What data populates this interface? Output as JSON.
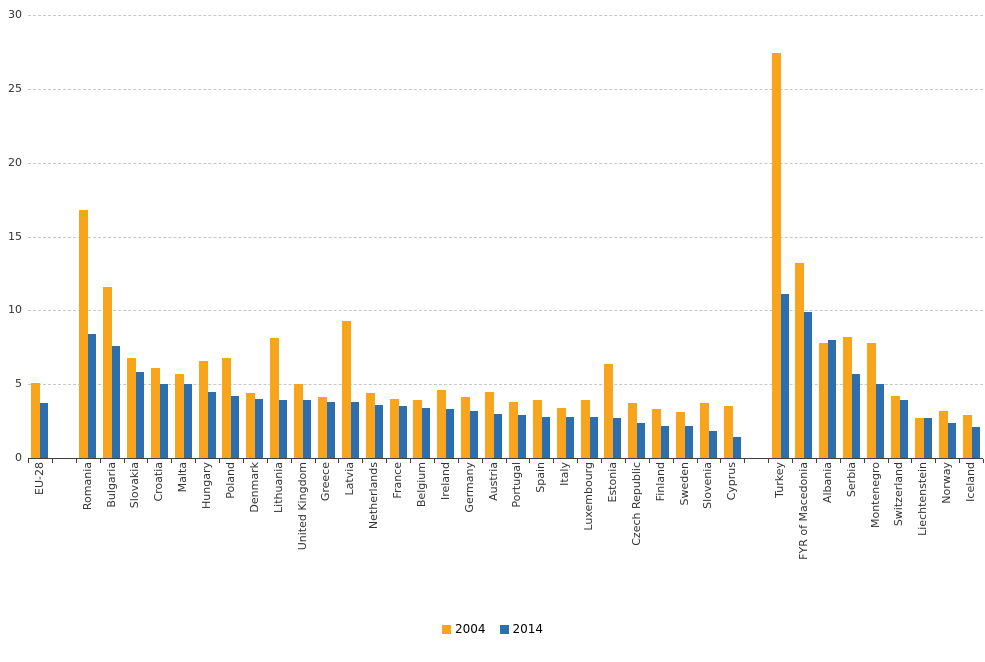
{
  "chart_data": {
    "type": "bar",
    "title": "",
    "xlabel": "",
    "ylabel": "",
    "ylim": [
      0,
      30
    ],
    "ytick_step": 5,
    "ytick_labels": [
      "0",
      "5",
      "10",
      "15",
      "20",
      "25",
      "30"
    ],
    "grid": "horizontal-dashed",
    "legend_position": "bottom-center",
    "categories": [
      "EU-28",
      "Romania",
      "Bulgaria",
      "Slovakia",
      "Croatia",
      "Malta",
      "Hungary",
      "Poland",
      "Denmark",
      "Lithuania",
      "United Kingdom",
      "Greece",
      "Latvia",
      "Netherlands",
      "France",
      "Belgium",
      "Ireland",
      "Germany",
      "Austria",
      "Portugal",
      "Spain",
      "Italy",
      "Luxembourg",
      "Estonia",
      "Czech Republic",
      "Finland",
      "Sweden",
      "Slovenia",
      "Cyprus",
      "Turkey",
      "FYR of Macedonia",
      "Albania",
      "Serbia",
      "Montenegro",
      "Switzerland",
      "Liechtenstein",
      "Norway",
      "Iceland"
    ],
    "gap_after": [
      "EU-28",
      "Cyprus"
    ],
    "series": [
      {
        "name": "2004",
        "color": "#F8A41C",
        "values": [
          5.1,
          16.8,
          11.6,
          6.8,
          6.1,
          5.7,
          6.6,
          6.8,
          4.4,
          8.1,
          5.0,
          4.1,
          9.3,
          4.4,
          4.0,
          3.9,
          4.6,
          4.1,
          4.5,
          3.8,
          3.9,
          3.4,
          3.9,
          6.4,
          3.7,
          3.3,
          3.1,
          3.7,
          3.5,
          27.4,
          13.2,
          7.8,
          8.2,
          7.8,
          4.2,
          2.7,
          3.2,
          2.9
        ]
      },
      {
        "name": "2014",
        "color": "#2D6EAF",
        "values": [
          3.7,
          8.4,
          7.6,
          5.8,
          5.0,
          5.0,
          4.5,
          4.2,
          4.0,
          3.9,
          3.9,
          3.8,
          3.8,
          3.6,
          3.5,
          3.4,
          3.3,
          3.2,
          3.0,
          2.9,
          2.8,
          2.8,
          2.8,
          2.7,
          2.4,
          2.2,
          2.2,
          1.8,
          1.4,
          11.1,
          9.9,
          8.0,
          5.7,
          5.0,
          3.9,
          2.7,
          2.4,
          2.1
        ]
      }
    ]
  },
  "legend": {
    "items": [
      {
        "label": "2004",
        "color": "#F8A41C"
      },
      {
        "label": "2014",
        "color": "#2D6EAF"
      }
    ]
  }
}
